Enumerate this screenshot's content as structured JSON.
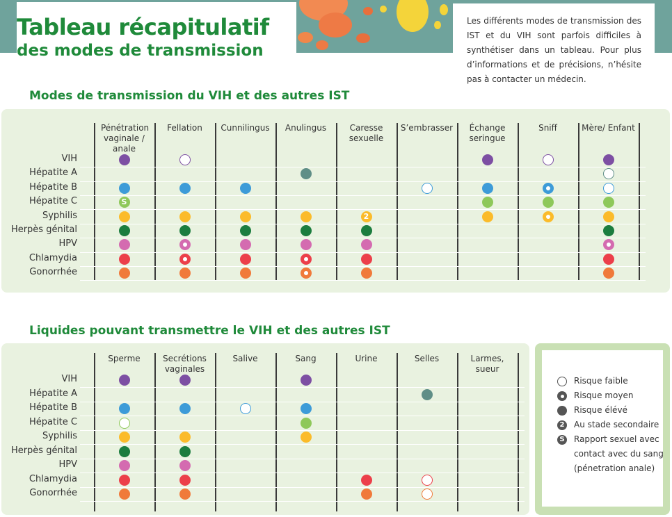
{
  "header": {
    "title_line1": "Tableau récapitulatif",
    "title_line2": "des modes de transmission",
    "intro": "Les différents modes de transmission des IST et du VIH sont parfois difficiles à synthétiser dans un tableau. Pour plus d’informations et de précisions, n’hésite pas à contacter un médecin."
  },
  "colors": {
    "VIH": "#7d4fa3",
    "Hépatite A": "#5f8e87",
    "Hépatite B": "#3d9bd8",
    "Hépatite C": "#8ec85a",
    "Syphilis": "#fbbb2a",
    "Herpès génital": "#1c7d3f",
    "HPV": "#d46bb0",
    "Chlamydia": "#ec3f4a",
    "Gonorrhée": "#f07a3a"
  },
  "diseases": [
    "VIH",
    "Hépatite A",
    "Hépatite B",
    "Hépatite C",
    "Syphilis",
    "Herpès génital",
    "HPV",
    "Chlamydia",
    "Gonorrhée"
  ],
  "table1": {
    "title": "Modes de transmission du VIH et des autres IST",
    "columns": [
      "Pénétration vaginale / anale",
      "Fellation",
      "Cunnilingus",
      "Anulingus",
      "Caresse sexuelle",
      "S’embrasser",
      "Échange seringue",
      "Sniff",
      "Mère/ Enfant"
    ],
    "cells": [
      [
        "high",
        "low",
        "",
        "",
        "",
        "",
        "high",
        "low",
        "high"
      ],
      [
        "",
        "",
        "",
        "high",
        "",
        "",
        "",
        "",
        "low"
      ],
      [
        "high",
        "high",
        "high",
        "",
        "",
        "low",
        "high",
        "mid",
        "low"
      ],
      [
        "sang",
        "",
        "",
        "",
        "",
        "",
        "high",
        "high",
        "high"
      ],
      [
        "high",
        "high",
        "high",
        "high",
        "sec",
        "",
        "high",
        "mid",
        "high"
      ],
      [
        "high",
        "high",
        "high",
        "high",
        "high",
        "",
        "",
        "",
        "high"
      ],
      [
        "high",
        "mid",
        "high",
        "high",
        "high",
        "",
        "",
        "",
        "mid"
      ],
      [
        "high",
        "mid",
        "high",
        "mid",
        "high",
        "",
        "",
        "",
        "high"
      ],
      [
        "high",
        "high",
        "high",
        "mid",
        "high",
        "",
        "",
        "",
        "high"
      ]
    ]
  },
  "table2": {
    "title": "Liquides pouvant transmettre le VIH et des autres IST",
    "columns": [
      "Sperme",
      "Secrétions vaginales",
      "Salive",
      "Sang",
      "Urine",
      "Selles",
      "Larmes, sueur"
    ],
    "cells": [
      [
        "high",
        "high",
        "",
        "high",
        "",
        "",
        ""
      ],
      [
        "",
        "",
        "",
        "",
        "",
        "high",
        ""
      ],
      [
        "high",
        "high",
        "low",
        "high",
        "",
        "",
        ""
      ],
      [
        "low",
        "",
        "",
        "high",
        "",
        "",
        ""
      ],
      [
        "high",
        "high",
        "",
        "high",
        "",
        "",
        ""
      ],
      [
        "high",
        "high",
        "",
        "",
        "",
        "",
        ""
      ],
      [
        "high",
        "high",
        "",
        "",
        "",
        "",
        ""
      ],
      [
        "high",
        "high",
        "",
        "",
        "high",
        "low",
        ""
      ],
      [
        "high",
        "high",
        "",
        "",
        "high",
        "low",
        ""
      ]
    ]
  },
  "legend": {
    "items": [
      {
        "symbol": "low",
        "label": "Risque faible"
      },
      {
        "symbol": "mid",
        "label": "Risque moyen"
      },
      {
        "symbol": "high",
        "label": "Risque élévé"
      },
      {
        "symbol": "sec",
        "label": "Au stade secondaire"
      },
      {
        "symbol": "sang",
        "label": "Rapport sexuel avec contact avec du sang (pénetration anale)"
      }
    ],
    "sec_glyph": "2",
    "sang_glyph": "S",
    "symbol_color": "#555555"
  }
}
